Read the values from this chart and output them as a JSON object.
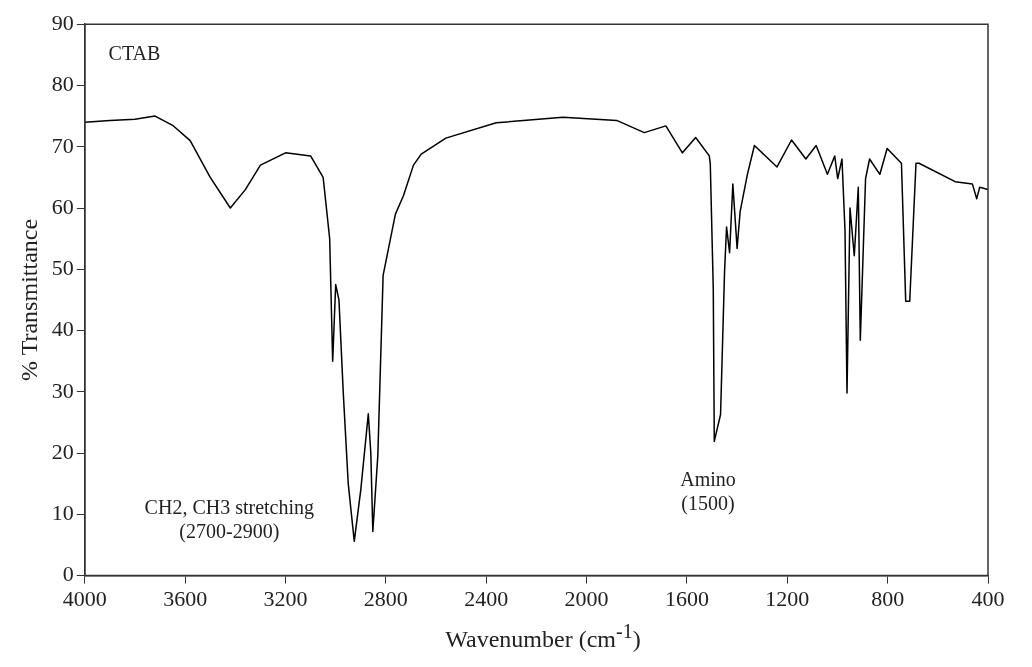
{
  "chart_data": {
    "type": "line",
    "xlabel": "Wavenumber (cm$^{-1}$)",
    "ylabel": "% Transmittance",
    "annotations": [
      "CTAB",
      "CH2, CH3 stretching\n(2700-2900)",
      "Amino\n(1500)"
    ],
    "x": [
      4000,
      3900,
      3800,
      3720,
      3650,
      3580,
      3500,
      3420,
      3360,
      3300,
      3200,
      3100,
      3050,
      3024,
      3012,
      3000,
      2987,
      2970,
      2950,
      2926,
      2900,
      2870,
      2860,
      2852,
      2832,
      2811,
      2762,
      2730,
      2690,
      2659,
      2561,
      2360,
      2094,
      1880,
      1770,
      1684,
      1618,
      1565,
      1511,
      1507,
      1495,
      1491,
      1466,
      1450,
      1442,
      1430,
      1417,
      1400,
      1388,
      1359,
      1331,
      1241,
      1183,
      1126,
      1085,
      1040,
      1011,
      999,
      982,
      970,
      962,
      950,
      933,
      917,
      909,
      888,
      872,
      831,
      802,
      745,
      728,
      712,
      687,
      675,
      531,
      462,
      445,
      433,
      400
    ],
    "series": [
      {
        "color": "#000000",
        "values": [
          74,
          74.3,
          74.5,
          75,
          73.5,
          71,
          65,
          60,
          63,
          67,
          69,
          68.5,
          65,
          55,
          35,
          47.5,
          45,
          30,
          15,
          5.6,
          14,
          26.4,
          20,
          7.2,
          19.6,
          49,
          59,
          62,
          67,
          68.8,
          71.4,
          73.9,
          74.8,
          74.3,
          72.3,
          73.4,
          69,
          71.5,
          68.5,
          67.3,
          46.8,
          21.9,
          26.3,
          49.7,
          56.9,
          52.7,
          63.9,
          53.4,
          59.4,
          65.5,
          70.2,
          66.7,
          71.1,
          68,
          70.2,
          65.5,
          68.5,
          64.8,
          68,
          56.4,
          29.8,
          60,
          52.2,
          63.4,
          38.4,
          64.8,
          68,
          65.5,
          69.7,
          67.3,
          44.8,
          44.8,
          67.3,
          67.3,
          64.3,
          63.9,
          61.5,
          63.4,
          63
        ]
      }
    ],
    "xlim": [
      4000,
      400
    ],
    "xticks": [
      4000,
      3600,
      3200,
      2800,
      2400,
      2000,
      1600,
      1200,
      800,
      400
    ],
    "ylim": [
      0,
      90
    ],
    "yticks": [
      0,
      10,
      20,
      30,
      40,
      50,
      60,
      70,
      80,
      90
    ],
    "grid": false,
    "legend": false,
    "marker": "none",
    "line_style": "solid"
  }
}
